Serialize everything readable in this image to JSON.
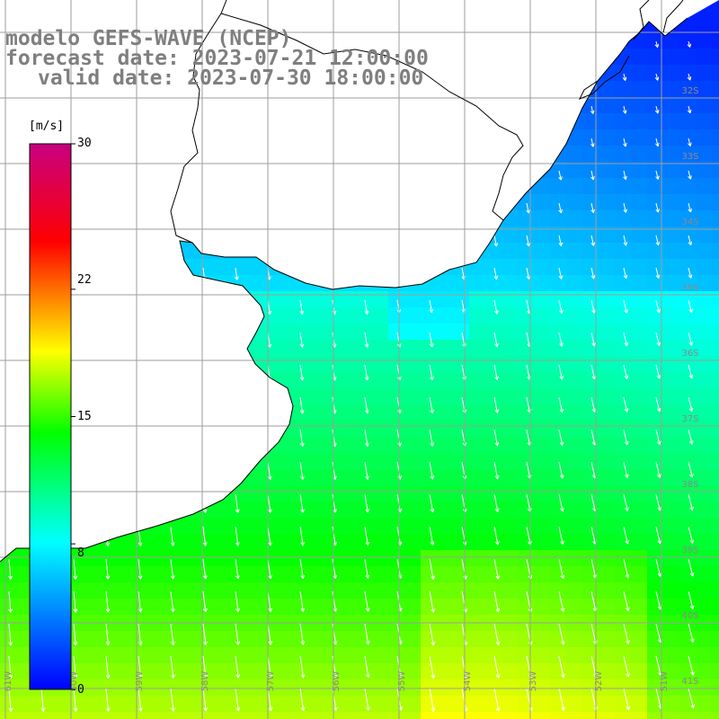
{
  "header": {
    "line1": "modelo GEFS-WAVE (NCEP)",
    "line2": "forecast date: 2023-07-21 12:00:00",
    "line3": "valid date: 2023-07-30 18:00:00"
  },
  "colorbar": {
    "unit": "[m/s]",
    "min": 0,
    "max": 30,
    "ticks": [
      "30",
      "22",
      "15",
      "8",
      "0"
    ],
    "tick_values": [
      30,
      22,
      15,
      8,
      0
    ],
    "colors": [
      "#0000ff",
      "#00ffff",
      "#00ff00",
      "#ffff00",
      "#ff0000",
      "#c80080"
    ]
  },
  "map": {
    "lon_range": [
      -61.5,
      -50.5
    ],
    "lat_range": [
      -41.5,
      -30.5
    ],
    "lat_labels": [
      "32S",
      "33S",
      "34S",
      "35S",
      "36S",
      "37S",
      "38S",
      "39S",
      "40S",
      "41S"
    ],
    "lon_labels": [
      "61W",
      "60W",
      "59W",
      "58W",
      "57W",
      "56W",
      "55W",
      "54W",
      "53W",
      "52W",
      "51W"
    ],
    "land_color": "#ffffff",
    "grid_color": "#9e9e9e",
    "coast_color": "#000000",
    "arrow_color": "#ffffff"
  }
}
